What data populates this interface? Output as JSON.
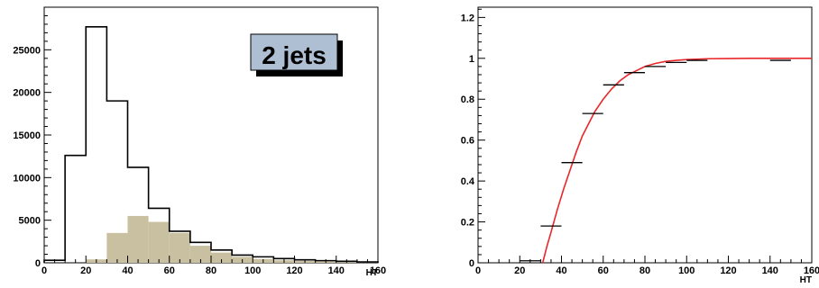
{
  "chart_data": [
    {
      "type": "histogram",
      "title": "",
      "xlabel": "HT",
      "ylabel": "",
      "xlim": [
        0,
        160
      ],
      "ylim": [
        0,
        30000
      ],
      "x_ticks": [
        0,
        20,
        40,
        60,
        80,
        100,
        120,
        140,
        160
      ],
      "y_ticks": [
        0,
        5000,
        10000,
        15000,
        20000,
        25000
      ],
      "bin_edges": [
        0,
        10,
        20,
        30,
        40,
        50,
        60,
        70,
        80,
        90,
        100,
        110,
        120,
        130,
        140,
        150,
        160
      ],
      "annotation": "2 jets",
      "grid": false,
      "colors": {
        "outline": "#000000",
        "fill": "#c8c0a0"
      },
      "series": [
        {
          "style": "outline",
          "values": [
            300,
            12600,
            27700,
            19000,
            11200,
            6400,
            3700,
            2400,
            1500,
            900,
            700,
            500,
            350,
            250,
            180,
            100
          ]
        },
        {
          "style": "filled",
          "values": [
            0,
            0,
            400,
            3500,
            5500,
            4800,
            3500,
            2000,
            1200,
            700,
            450,
            300,
            220,
            150,
            100,
            50
          ]
        }
      ]
    },
    {
      "type": "scatter",
      "title": "",
      "xlabel": "HT",
      "ylabel": "",
      "xlim": [
        0,
        160
      ],
      "ylim": [
        0,
        1.25
      ],
      "x_ticks": [
        0,
        20,
        40,
        60,
        80,
        100,
        120,
        140,
        160
      ],
      "y_ticks": [
        0,
        0.2,
        0.4,
        0.6,
        0.8,
        1,
        1.2
      ],
      "grid": false,
      "colors": {
        "points": "#000000",
        "fit": "#e8282a"
      },
      "points": [
        {
          "x": 25,
          "y": 0.01,
          "xerr": 5
        },
        {
          "x": 35,
          "y": 0.18,
          "xerr": 5
        },
        {
          "x": 45,
          "y": 0.49,
          "xerr": 5
        },
        {
          "x": 55,
          "y": 0.73,
          "xerr": 5
        },
        {
          "x": 65,
          "y": 0.87,
          "xerr": 5
        },
        {
          "x": 75,
          "y": 0.93,
          "xerr": 5
        },
        {
          "x": 85,
          "y": 0.96,
          "xerr": 5
        },
        {
          "x": 95,
          "y": 0.98,
          "xerr": 5
        },
        {
          "x": 105,
          "y": 0.99,
          "xerr": 5
        },
        {
          "x": 145,
          "y": 0.99,
          "xerr": 5
        }
      ],
      "fit": {
        "x": [
          31,
          33,
          35,
          38,
          41,
          44,
          47,
          50,
          53,
          56,
          60,
          64,
          68,
          72,
          76,
          80,
          85,
          90,
          95,
          100,
          110,
          120,
          130,
          140,
          150,
          160
        ],
        "y": [
          0,
          0.08,
          0.15,
          0.26,
          0.36,
          0.45,
          0.54,
          0.62,
          0.68,
          0.74,
          0.8,
          0.85,
          0.89,
          0.92,
          0.94,
          0.96,
          0.975,
          0.985,
          0.99,
          0.994,
          0.998,
          0.999,
          1,
          1,
          1,
          1
        ]
      }
    }
  ]
}
